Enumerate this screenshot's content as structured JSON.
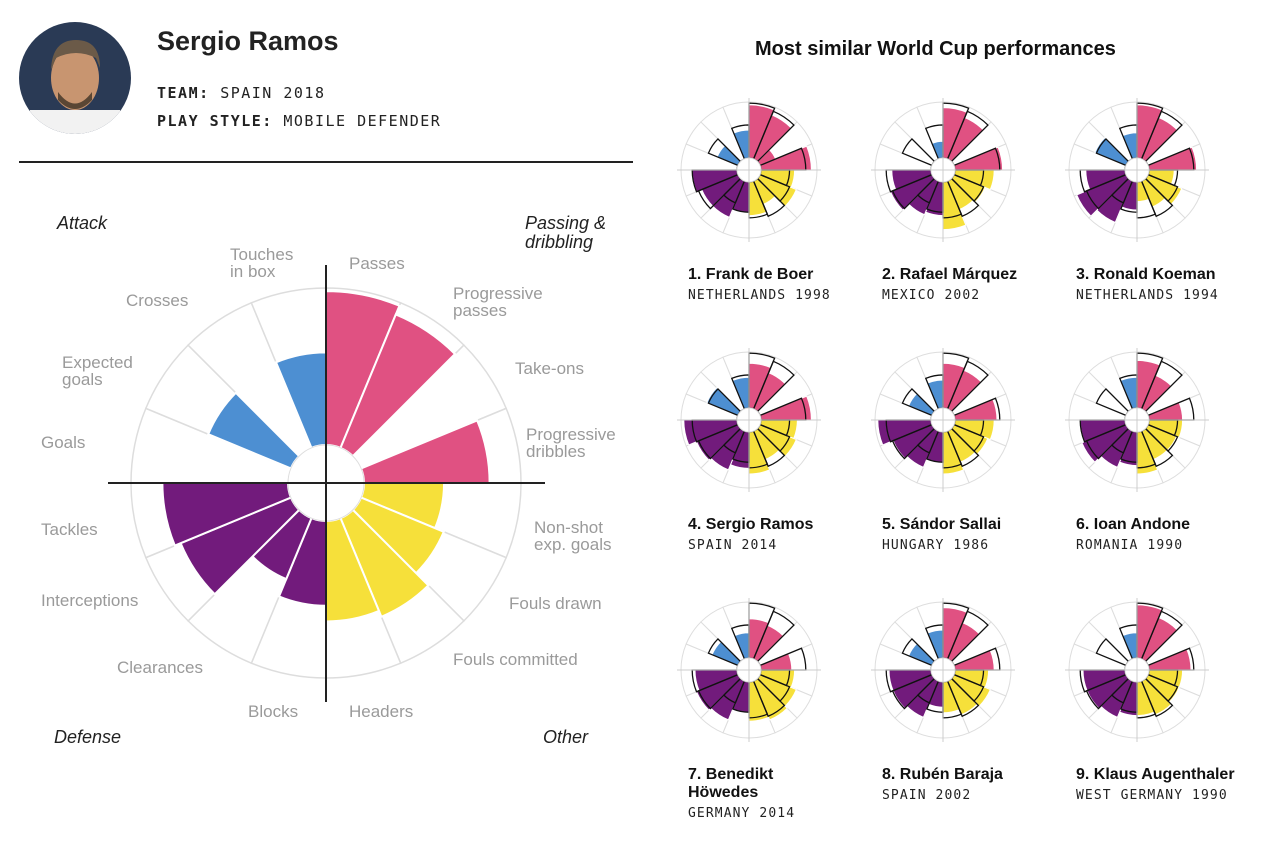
{
  "header": {
    "name": "Sergio Ramos",
    "team_label": "TEAM:",
    "team": "SPAIN 2018",
    "style_label": "PLAY STYLE:",
    "style": "MOBILE DEFENDER"
  },
  "similar_title": "Most similar World Cup performances",
  "chart_data": [
    {
      "type": "radial",
      "group_labels": [
        "Passing & dribbling",
        "Other",
        "Defense",
        "Attack"
      ],
      "colors": [
        "#e05182",
        "#f6e03a",
        "#721b7c",
        "#4d8fd2"
      ],
      "categories": [
        "Passes",
        "Progressive passes",
        "Take-ons",
        "Progressive dribbles",
        "Non-shot exp. goals",
        "Fouls drawn",
        "Fouls committed",
        "Headers",
        "Blocks",
        "Clearances",
        "Interceptions",
        "Tackles",
        "Goals",
        "Expected goals",
        "Crosses",
        "Touches in box"
      ],
      "values": [
        98,
        92,
        0,
        80,
        51,
        57,
        68,
        64,
        54,
        42,
        76,
        80,
        0,
        57,
        0,
        59
      ]
    },
    {
      "type": "radial",
      "title": "1. Frank de Boer",
      "subtitle": "NETHERLANDS 1998",
      "values": [
        95,
        85,
        30,
        90,
        60,
        70,
        45,
        60,
        55,
        70,
        70,
        80,
        0,
        40,
        0,
        50
      ]
    },
    {
      "type": "radial",
      "title": "2. Rafael Márquez",
      "subtitle": "MEXICO 2002",
      "values": [
        90,
        80,
        0,
        85,
        70,
        60,
        55,
        85,
        60,
        65,
        80,
        70,
        0,
        0,
        0,
        30
      ]
    },
    {
      "type": "radial",
      "title": "3. Ronald Koeman",
      "subtitle": "NETHERLANDS 1994",
      "values": [
        95,
        80,
        0,
        85,
        45,
        65,
        50,
        35,
        50,
        80,
        95,
        70,
        0,
        60,
        0,
        45
      ]
    },
    {
      "type": "radial",
      "title": "4. Sergio Ramos",
      "subtitle": "SPAIN 2014",
      "values": [
        80,
        70,
        0,
        90,
        65,
        70,
        55,
        75,
        65,
        75,
        80,
        95,
        0,
        60,
        0,
        55
      ]
    },
    {
      "type": "radial",
      "title": "5. Sándor Sallai",
      "subtitle": "HUNGARY 1986",
      "values": [
        80,
        75,
        0,
        75,
        70,
        65,
        60,
        75,
        55,
        70,
        75,
        95,
        0,
        45,
        0,
        50
      ]
    },
    {
      "type": "radial",
      "title": "6. Ioan Andone",
      "subtitle": "ROMANIA 1990",
      "values": [
        85,
        65,
        0,
        60,
        60,
        55,
        55,
        75,
        60,
        70,
        85,
        80,
        0,
        0,
        0,
        55
      ]
    },
    {
      "type": "radial",
      "title": "7. Benedikt Höwedes",
      "subtitle": "GERMANY 2014",
      "values": [
        70,
        65,
        0,
        55,
        60,
        70,
        75,
        70,
        55,
        75,
        80,
        75,
        0,
        50,
        0,
        45
      ]
    },
    {
      "type": "radial",
      "title": "8. Rubén Baraja",
      "subtitle": "SPAIN 2002",
      "values": [
        90,
        70,
        0,
        70,
        60,
        70,
        65,
        55,
        45,
        70,
        75,
        75,
        0,
        45,
        0,
        50
      ]
    },
    {
      "type": "radial",
      "title": "9. Klaus Augenthaler",
      "subtitle": "WEST GERMANY 1990",
      "values": [
        95,
        80,
        0,
        75,
        60,
        60,
        65,
        60,
        60,
        70,
        75,
        75,
        0,
        0,
        0,
        45
      ]
    }
  ]
}
